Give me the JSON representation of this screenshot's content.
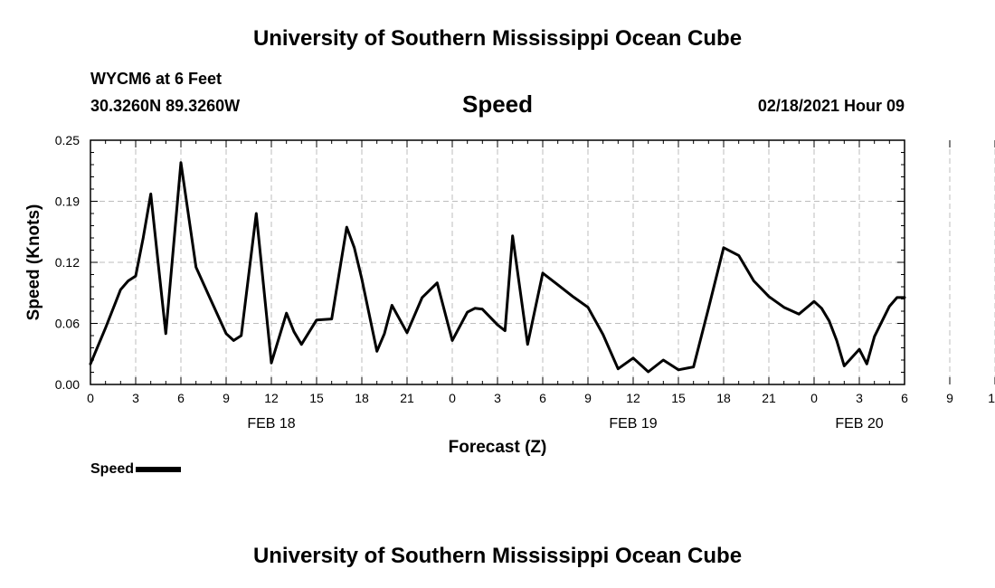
{
  "page": {
    "title_top": "University of Southern Mississippi Ocean Cube",
    "title_bottom": "University of Southern Mississippi Ocean Cube",
    "station": "WYCM6 at 6 Feet",
    "coords": "30.3260N 89.3260W",
    "datetime": "02/18/2021 Hour 09"
  },
  "chart_data": {
    "type": "line",
    "title": "Speed",
    "xlabel": "Forecast (Z)",
    "ylabel": "Speed (Knots)",
    "x_unit": "forecast hour (0 = FEB 18 00Z)",
    "xlim": [
      0,
      54
    ],
    "ylim": [
      0.0,
      0.25
    ],
    "yticks": [
      "0.00",
      "0.06",
      "0.12",
      "0.19",
      "0.25"
    ],
    "xtick_labels": [
      "0",
      "3",
      "6",
      "9",
      "12",
      "15",
      "18",
      "21",
      "0",
      "3",
      "6",
      "9",
      "12",
      "15",
      "18",
      "21",
      "0",
      "3",
      "6",
      "9",
      "12",
      "15",
      "18",
      "21",
      "0",
      "3",
      "6"
    ],
    "day_labels": [
      {
        "text": "FEB 18",
        "hour": 12
      },
      {
        "text": "FEB 19",
        "hour": 36
      },
      {
        "text": "FEB 20",
        "hour": 51
      }
    ],
    "grid": true,
    "legend_position": "bottom-left",
    "series": [
      {
        "name": "Speed",
        "color": "#000000",
        "x": [
          0,
          1,
          2,
          2.5,
          3,
          3.5,
          4,
          4.5,
          5,
          6,
          7,
          8,
          9,
          9.5,
          10,
          11,
          12,
          13,
          13.5,
          14,
          15,
          16,
          17,
          17.5,
          18,
          19,
          19.5,
          20,
          21,
          22,
          23,
          24,
          25,
          25.5,
          26,
          27,
          27.5,
          28,
          29,
          30,
          31,
          32,
          33,
          34,
          35,
          36,
          37,
          38,
          39,
          40,
          41,
          42,
          43,
          44,
          45,
          46,
          47,
          48,
          48.5,
          49,
          49.5,
          50,
          51,
          51.5,
          52,
          53,
          53.5,
          54
        ],
        "y": [
          0.021,
          0.058,
          0.097,
          0.106,
          0.111,
          0.15,
          0.195,
          0.123,
          0.052,
          0.227,
          0.12,
          0.086,
          0.052,
          0.045,
          0.05,
          0.175,
          0.022,
          0.073,
          0.054,
          0.041,
          0.066,
          0.067,
          0.161,
          0.14,
          0.108,
          0.034,
          0.052,
          0.081,
          0.053,
          0.089,
          0.104,
          0.045,
          0.074,
          0.078,
          0.077,
          0.061,
          0.055,
          0.152,
          0.041,
          0.114,
          0.102,
          0.09,
          0.079,
          0.051,
          0.016,
          0.027,
          0.013,
          0.025,
          0.015,
          0.018,
          0.078,
          0.14,
          0.132,
          0.106,
          0.09,
          0.079,
          0.072,
          0.085,
          0.078,
          0.065,
          0.045,
          0.019,
          0.036,
          0.021,
          0.049,
          0.08,
          0.089,
          0.089
        ]
      }
    ]
  }
}
